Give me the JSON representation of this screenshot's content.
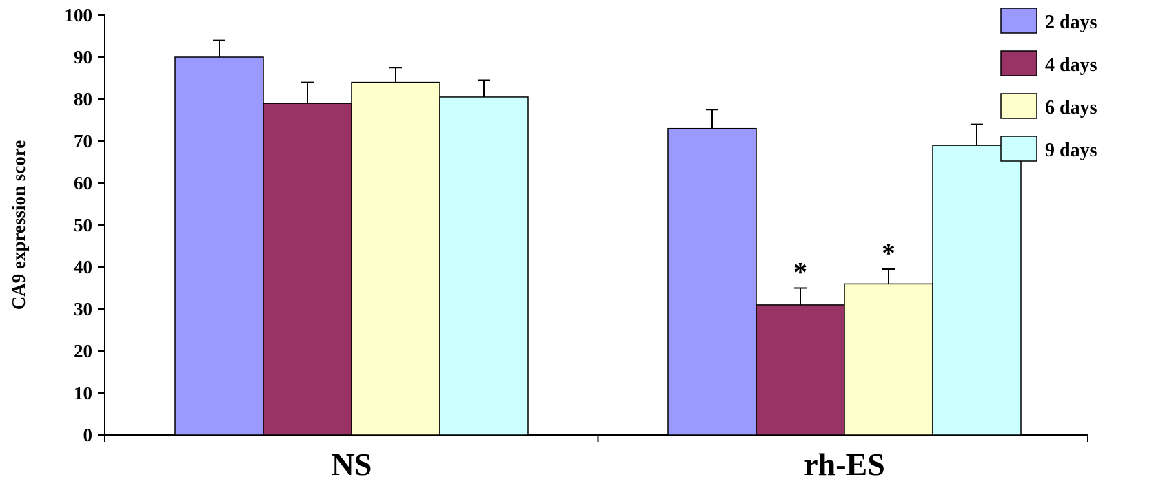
{
  "chart_data": {
    "type": "bar",
    "title": "",
    "xlabel": "",
    "ylabel": "CA9 expression score",
    "ylim": [
      0,
      100
    ],
    "yticks": [
      0,
      10,
      20,
      30,
      40,
      50,
      60,
      70,
      80,
      90,
      100
    ],
    "categories": [
      "NS",
      "rh-ES"
    ],
    "series": [
      {
        "name": "2 days",
        "color": "#9999ff",
        "values": [
          90,
          73
        ],
        "errors": [
          4,
          4.5
        ]
      },
      {
        "name": "4 days",
        "color": "#993366",
        "values": [
          79,
          31
        ],
        "errors": [
          5,
          4
        ]
      },
      {
        "name": "6 days",
        "color": "#ffffcc",
        "values": [
          84,
          36
        ],
        "errors": [
          3.5,
          3.5
        ]
      },
      {
        "name": "9 days",
        "color": "#ccffff",
        "values": [
          80.5,
          69
        ],
        "errors": [
          4,
          5
        ]
      }
    ],
    "annotations": [
      {
        "category": "rh-ES",
        "series": "4 days",
        "text": "*"
      },
      {
        "category": "rh-ES",
        "series": "6 days",
        "text": "*"
      }
    ],
    "legend_position": "top-right",
    "grid": false
  }
}
